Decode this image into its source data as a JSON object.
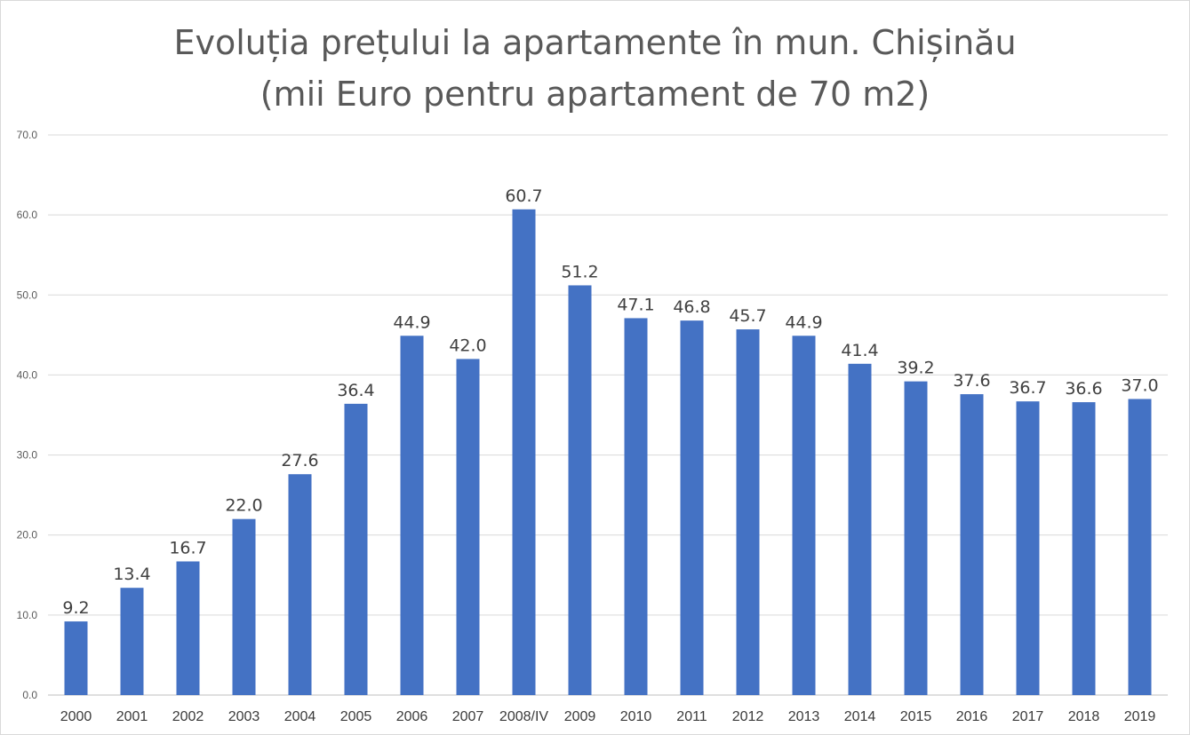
{
  "chart_data": {
    "type": "bar",
    "title_line1": "Evoluția prețului la apartamente în mun. Chișinău",
    "title_line2": "(mii Euro pentru apartament de 70 m2)",
    "categories": [
      "2000",
      "2001",
      "2002",
      "2003",
      "2004",
      "2005",
      "2006",
      "2007",
      "2008/IV",
      "2009",
      "2010",
      "2011",
      "2012",
      "2013",
      "2014",
      "2015",
      "2016",
      "2017",
      "2018",
      "2019"
    ],
    "values": [
      9.2,
      13.4,
      16.7,
      22.0,
      27.6,
      36.4,
      44.9,
      42.0,
      60.7,
      51.2,
      47.1,
      46.8,
      45.7,
      44.9,
      41.4,
      39.2,
      37.6,
      36.7,
      36.6,
      37.0
    ],
    "data_labels": [
      "9.2",
      "13.4",
      "16.7",
      "22.0",
      "27.6",
      "36.4",
      "44.9",
      "42.0",
      "60.7",
      "51.2",
      "47.1",
      "46.8",
      "45.7",
      "44.9",
      "41.4",
      "39.2",
      "37.6",
      "36.7",
      "36.6",
      "37.0"
    ],
    "y_ticks": [
      "0.0",
      "10.0",
      "20.0",
      "30.0",
      "40.0",
      "50.0",
      "60.0",
      "70.0"
    ],
    "ylim": [
      0,
      70
    ],
    "grid": true,
    "legend": "none",
    "bar_color": "#4472c4",
    "grid_color": "#d9d9d9"
  }
}
